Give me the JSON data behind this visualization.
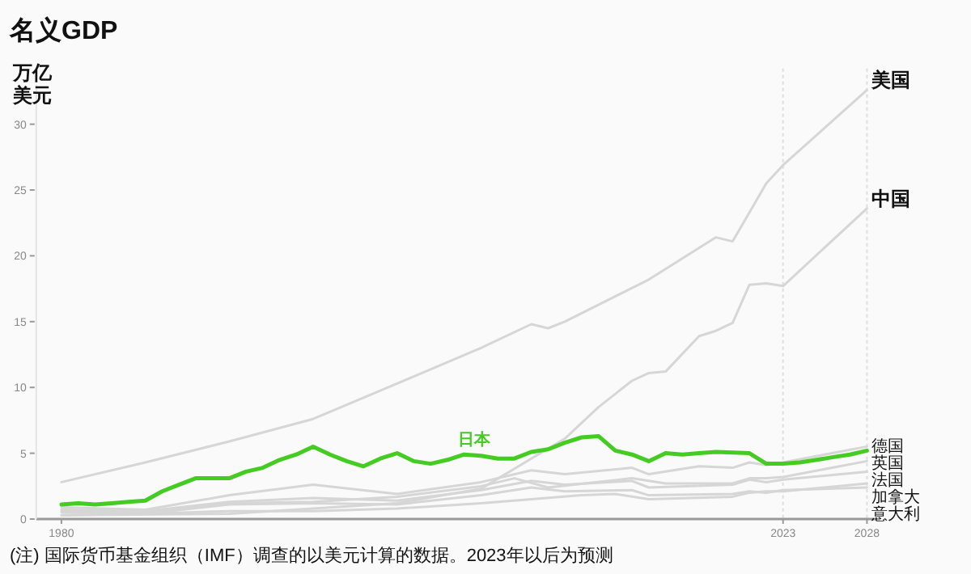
{
  "chart_data": {
    "type": "line",
    "title": "名义GDP",
    "ylabel": "万亿美元",
    "xlim": [
      1978.5,
      2028.8
    ],
    "xticks": [
      1980,
      2023,
      2028
    ],
    "ylim": [
      0,
      33
    ],
    "yticks": [
      0,
      5,
      10,
      15,
      20,
      25,
      30
    ],
    "ref_lines": [
      {
        "axis": "x",
        "value": 2023,
        "line_style": "dotted",
        "color": "#dddddd"
      },
      {
        "axis": "x",
        "value": 2028,
        "line_style": "dotted",
        "color": "#dddddd"
      }
    ],
    "line_style": "solid",
    "marker": "none",
    "grid": false,
    "annotations": [
      "(注) 国际货币基金组织（IMF）调查的以美元计算的数据。2023年以后为预测"
    ],
    "series": [
      {
        "name": "美国",
        "color": "#d6d6d6",
        "x": [
          1980,
          1985,
          1990,
          1995,
          2000,
          2005,
          2008,
          2009,
          2010,
          2015,
          2019,
          2020,
          2021,
          2022,
          2023,
          2028
        ],
        "values": [
          2.8,
          4.3,
          5.9,
          7.6,
          10.3,
          13.0,
          14.8,
          14.5,
          15.0,
          18.2,
          21.4,
          21.1,
          23.3,
          25.5,
          26.9,
          32.6
        ]
      },
      {
        "name": "中国",
        "color": "#d6d6d6",
        "x": [
          1980,
          1990,
          2000,
          2005,
          2008,
          2010,
          2012,
          2014,
          2015,
          2016,
          2018,
          2019,
          2020,
          2021,
          2022,
          2023,
          2028
        ],
        "values": [
          0.3,
          0.4,
          1.2,
          2.3,
          4.6,
          6.1,
          8.5,
          10.5,
          11.1,
          11.2,
          13.9,
          14.3,
          14.9,
          17.8,
          17.9,
          17.7,
          23.6
        ]
      },
      {
        "name": "德国",
        "color": "#d6d6d6",
        "x": [
          1980,
          1985,
          1990,
          1995,
          2000,
          2005,
          2008,
          2010,
          2014,
          2015,
          2018,
          2020,
          2021,
          2022,
          2023,
          2028
        ],
        "values": [
          0.9,
          0.7,
          1.8,
          2.6,
          1.9,
          2.8,
          3.7,
          3.4,
          3.9,
          3.4,
          4.0,
          3.9,
          4.3,
          4.1,
          4.3,
          5.5
        ]
      },
      {
        "name": "英国",
        "color": "#d6d6d6",
        "x": [
          1980,
          1985,
          1990,
          1995,
          2000,
          2005,
          2007,
          2009,
          2014,
          2016,
          2020,
          2021,
          2022,
          2023,
          2028
        ],
        "values": [
          0.6,
          0.5,
          1.2,
          1.3,
          1.7,
          2.5,
          3.1,
          2.4,
          3.1,
          2.7,
          2.7,
          3.1,
          3.1,
          3.2,
          4.4
        ]
      },
      {
        "name": "法国",
        "color": "#d6d6d6",
        "x": [
          1980,
          1985,
          1990,
          1995,
          2000,
          2005,
          2008,
          2010,
          2014,
          2015,
          2020,
          2021,
          2022,
          2023,
          2028
        ],
        "values": [
          0.7,
          0.6,
          1.3,
          1.6,
          1.4,
          2.2,
          2.9,
          2.6,
          2.9,
          2.4,
          2.6,
          3.0,
          2.8,
          3.0,
          3.6
        ]
      },
      {
        "name": "加拿大",
        "color": "#d6d6d6",
        "x": [
          1980,
          1985,
          1990,
          1995,
          2000,
          2005,
          2008,
          2011,
          2013,
          2015,
          2020,
          2021,
          2022,
          2023,
          2028
        ],
        "values": [
          0.3,
          0.4,
          0.6,
          0.6,
          0.8,
          1.2,
          1.5,
          1.8,
          1.9,
          1.5,
          1.7,
          2.0,
          2.1,
          2.1,
          2.7
        ]
      },
      {
        "name": "意大利",
        "color": "#d6d6d6",
        "x": [
          1980,
          1985,
          1990,
          1995,
          2000,
          2005,
          2008,
          2010,
          2014,
          2015,
          2020,
          2021,
          2022,
          2023,
          2028
        ],
        "values": [
          0.5,
          0.4,
          1.1,
          1.2,
          1.1,
          1.8,
          2.4,
          2.1,
          2.2,
          1.8,
          1.9,
          2.1,
          2.0,
          2.2,
          2.4
        ]
      },
      {
        "name": "日本",
        "color": "#44cc22",
        "x": [
          1980,
          1981,
          1982,
          1983,
          1984,
          1985,
          1986,
          1987,
          1988,
          1989,
          1990,
          1991,
          1992,
          1993,
          1994,
          1995,
          1996,
          1997,
          1998,
          1999,
          2000,
          2001,
          2002,
          2003,
          2004,
          2005,
          2006,
          2007,
          2008,
          2009,
          2010,
          2011,
          2012,
          2013,
          2014,
          2015,
          2016,
          2017,
          2018,
          2019,
          2020,
          2021,
          2022,
          2023,
          2024,
          2025,
          2026,
          2027,
          2028
        ],
        "values": [
          1.1,
          1.2,
          1.1,
          1.2,
          1.3,
          1.4,
          2.1,
          2.6,
          3.1,
          3.1,
          3.1,
          3.6,
          3.9,
          4.5,
          4.9,
          5.5,
          4.9,
          4.4,
          4.0,
          4.6,
          5.0,
          4.4,
          4.2,
          4.5,
          4.9,
          4.8,
          4.6,
          4.6,
          5.1,
          5.3,
          5.8,
          6.2,
          6.3,
          5.2,
          4.9,
          4.4,
          5.0,
          4.9,
          5.0,
          5.1,
          5.05,
          5.0,
          4.2,
          4.2,
          4.3,
          4.5,
          4.7,
          4.9,
          5.2
        ]
      }
    ]
  }
}
